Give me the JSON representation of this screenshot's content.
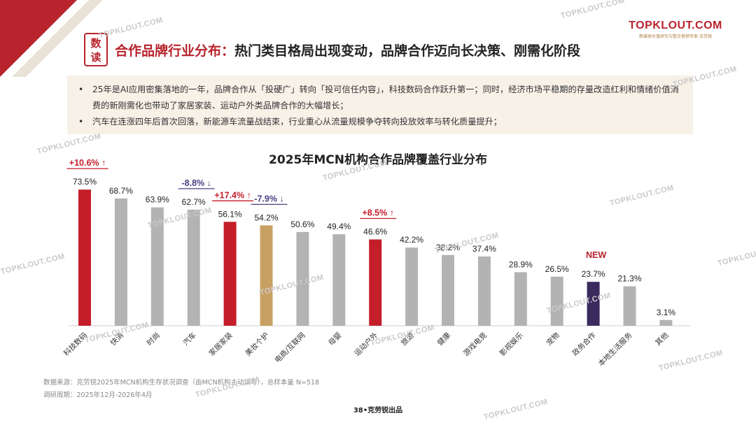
{
  "header": {
    "badge_top": "数",
    "badge_bottom": "读",
    "title_accent": "合作品牌行业分布：",
    "title_main": "热门类目格局出现变动，品牌合作迈向长决策、刚需化阶段"
  },
  "logo": {
    "main": "TOPKLOUT.COM",
    "sub": "新媒体价值研究与整合营销专家·克劳锐"
  },
  "bullets": [
    {
      "text": "25年是AI应用密集落地的一年，品牌合作从「投硬广」转向「投可信任内容」，科技数码合作跃升第一；同时，经济市场平稳期的存量改造红利和情绪价值消费的新刚需化也带动了家居家装、运动户外类品牌合作的大幅增长；"
    },
    {
      "text": "汽车在连涨四年后首次回落，新能源车流量战结束，行业重心从流量规模争夺转向投放效率与转化质量提升；"
    }
  ],
  "bullet_symbol": "•",
  "chart_data": {
    "type": "bar",
    "title": "2025年MCN机构合作品牌覆盖行业分布",
    "categories": [
      "科技数码",
      "快消",
      "时尚",
      "汽车",
      "家居家装",
      "美妆个护",
      "电商/互联网",
      "母婴",
      "运动户外",
      "旅游",
      "健康",
      "游戏电竞",
      "影视娱乐",
      "宠物",
      "政务合作",
      "本地生活服务",
      "其他"
    ],
    "values": [
      73.5,
      68.7,
      63.9,
      62.7,
      56.1,
      54.2,
      50.6,
      49.4,
      46.6,
      42.2,
      38.2,
      37.4,
      28.9,
      26.5,
      23.7,
      21.3,
      3.1
    ],
    "value_labels": [
      "73.5%",
      "68.7%",
      "63.9%",
      "62.7%",
      "56.1%",
      "54.2%",
      "50.6%",
      "49.4%",
      "46.6%",
      "42.2%",
      "38.2%",
      "37.4%",
      "28.9%",
      "26.5%",
      "23.7%",
      "21.3%",
      "3.1%"
    ],
    "bar_colors": [
      "#c41e2a",
      "#b3b3b3",
      "#b3b3b3",
      "#b3b3b3",
      "#c41e2a",
      "#c9a063",
      "#b3b3b3",
      "#b3b3b3",
      "#c41e2a",
      "#b3b3b3",
      "#b3b3b3",
      "#b3b3b3",
      "#b3b3b3",
      "#b3b3b3",
      "#3a2a5e",
      "#b3b3b3",
      "#b3b3b3"
    ],
    "ylim": [
      0,
      80
    ],
    "xlabel": "",
    "ylabel": "",
    "annotations": [
      {
        "category_index": 0,
        "text": "+10.6%",
        "arrow": "↑",
        "color": "#c41e2a"
      },
      {
        "category_index": 3,
        "text": "-8.8%",
        "arrow": "↓",
        "color": "#4b3f82"
      },
      {
        "category_index": 4,
        "text": "+17.4%",
        "arrow": "↑",
        "color": "#c41e2a"
      },
      {
        "category_index": 5,
        "text": "-7.9%",
        "arrow": "↓",
        "color": "#4b3f82"
      },
      {
        "category_index": 8,
        "text": "+8.5%",
        "arrow": "↑",
        "color": "#c41e2a"
      },
      {
        "category_index": 14,
        "text": "NEW",
        "arrow": "",
        "color": "#b8242d"
      }
    ]
  },
  "footer": {
    "source": "数据来源：克劳锐2025年MCN机构生存状况调查（由MCN机构主动填写），总样本量 N=518",
    "period": "调研周期：2025年12月-2026年4月",
    "page": "38•克劳锐出品"
  },
  "watermark_text": "TOPKLOUT.COM"
}
